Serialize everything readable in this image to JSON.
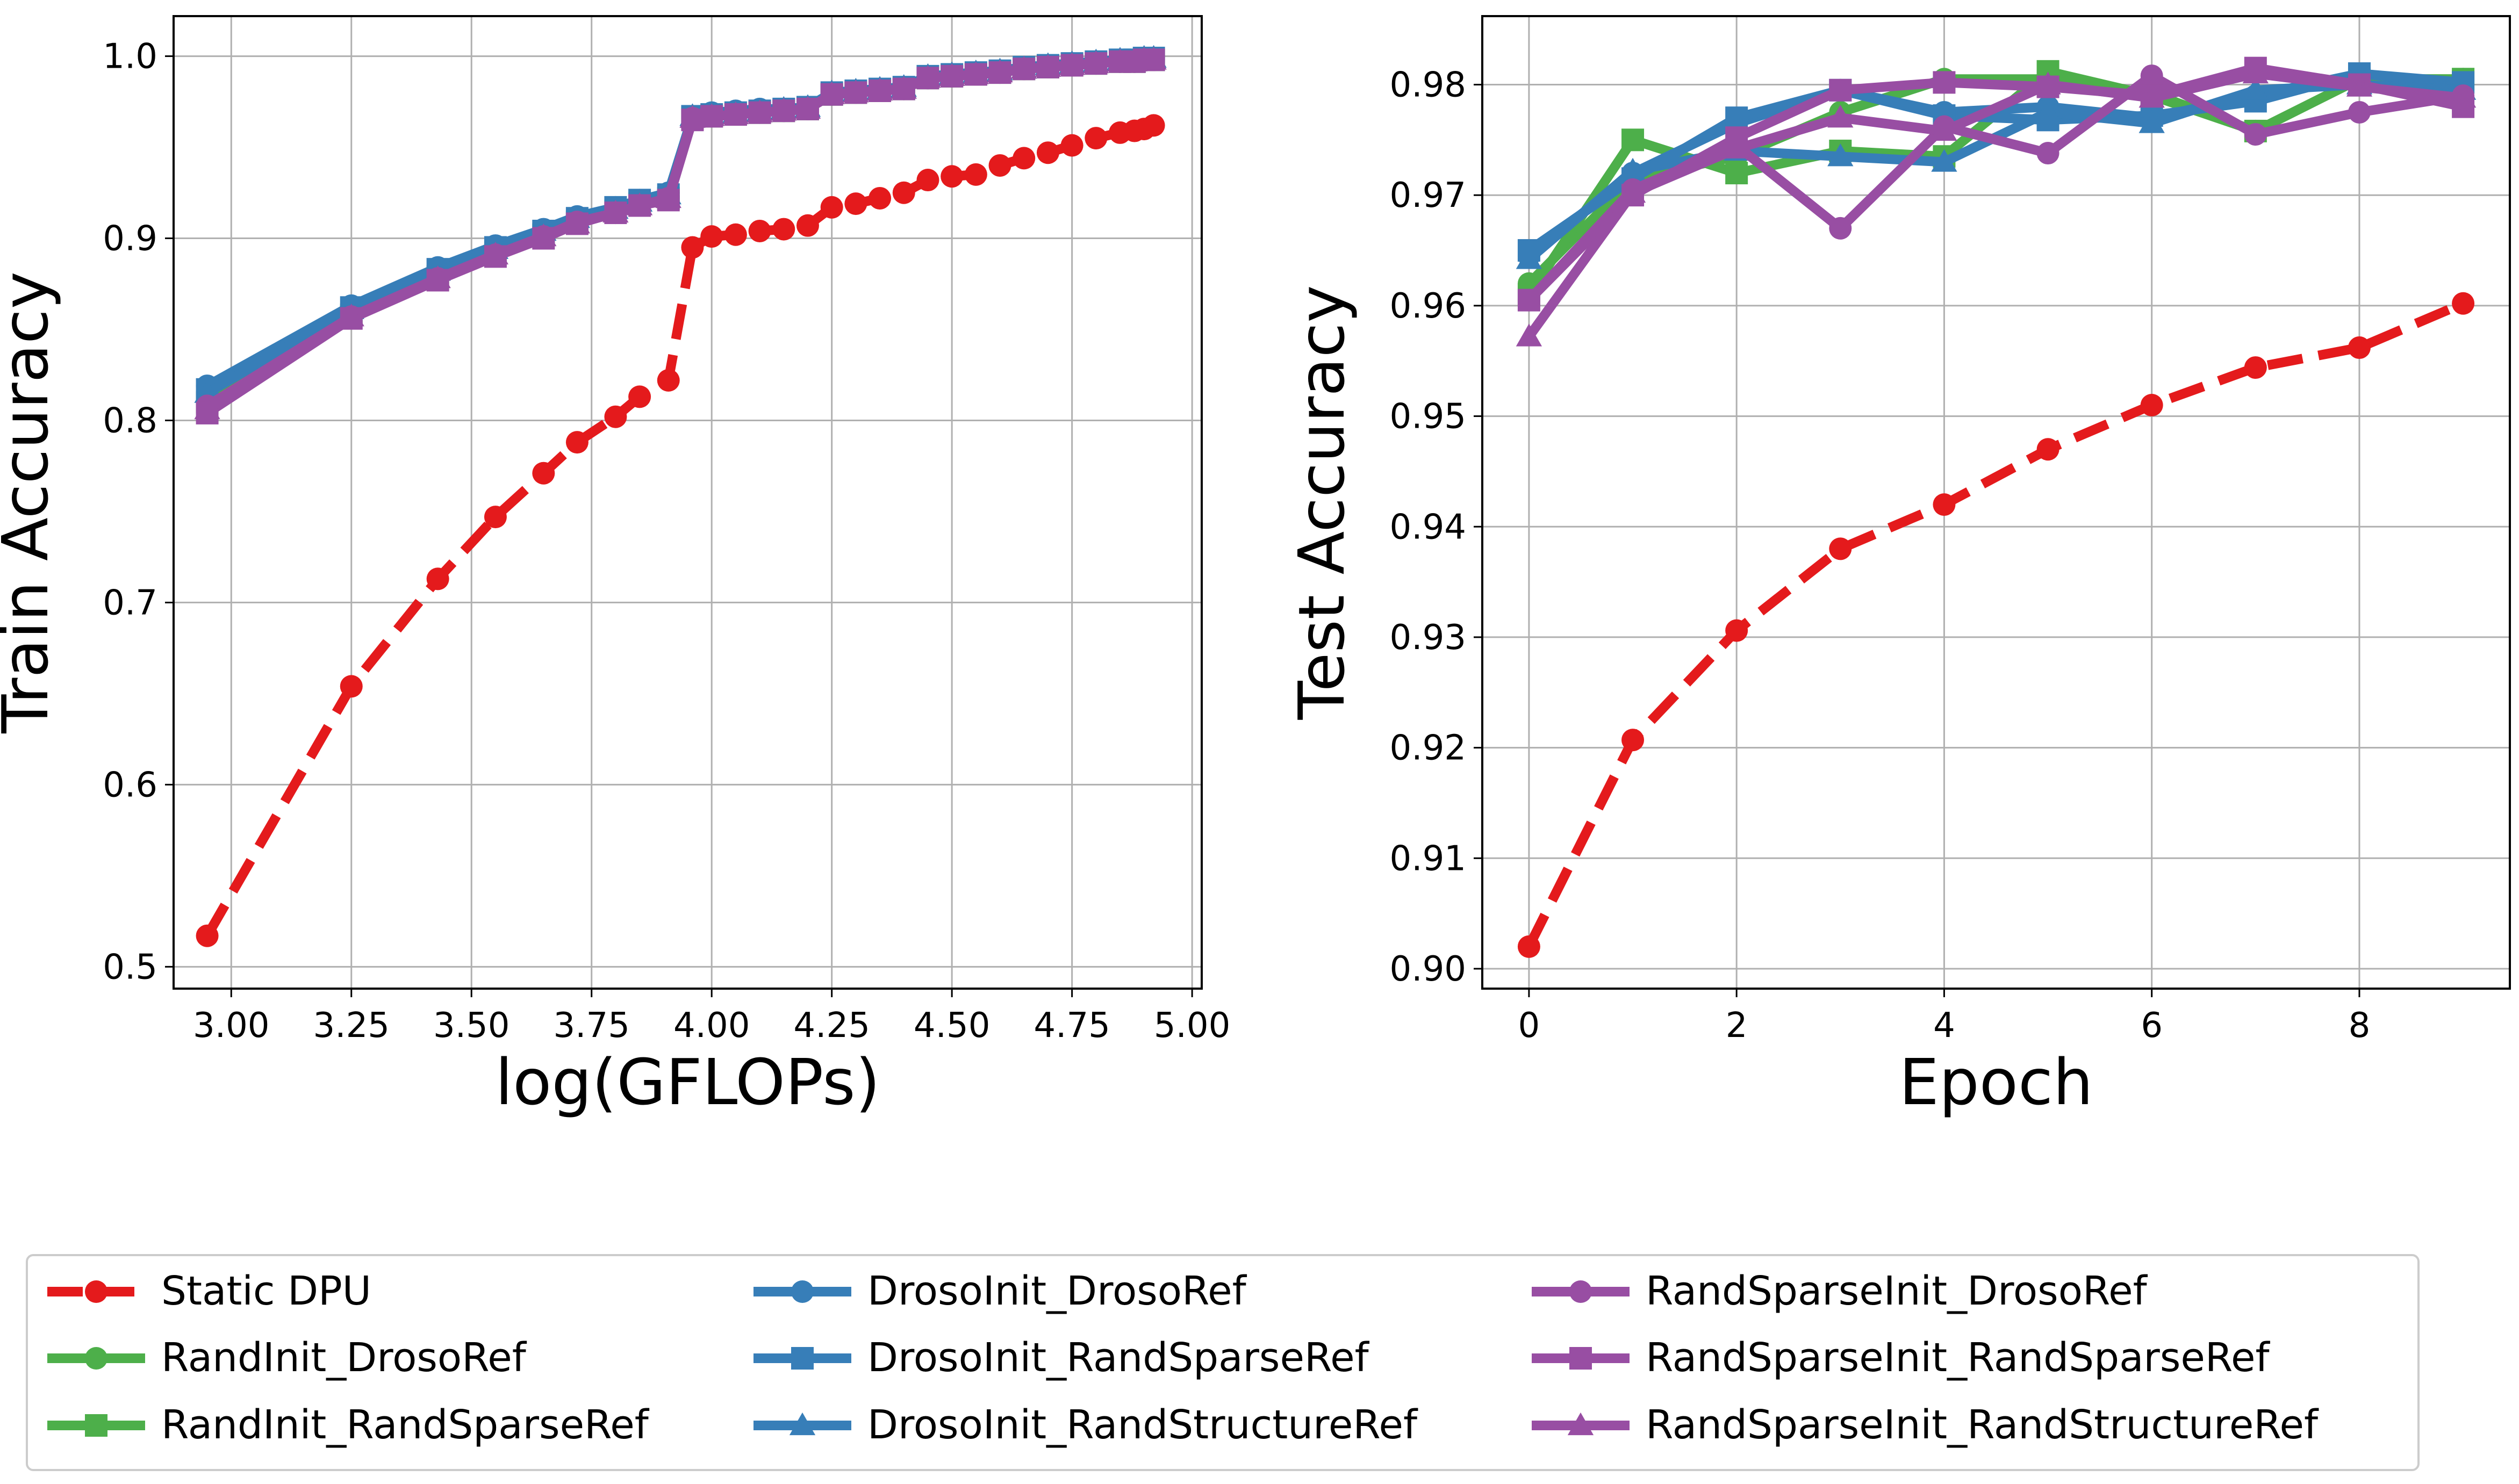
{
  "chart_data": [
    {
      "type": "line",
      "xlabel": "log(GFLOPs)",
      "ylabel": "Train Accuracy",
      "xlim": [
        2.88,
        5.02
      ],
      "ylim": [
        0.488,
        1.022
      ],
      "xticks": [
        3.0,
        3.25,
        3.5,
        3.75,
        4.0,
        4.25,
        4.5,
        4.75,
        5.0
      ],
      "xtick_labels": [
        "3.00",
        "3.25",
        "3.50",
        "3.75",
        "4.00",
        "4.25",
        "4.50",
        "4.75",
        "5.00"
      ],
      "yticks": [
        0.5,
        0.6,
        0.7,
        0.8,
        0.9,
        1.0
      ],
      "ytick_labels": [
        "0.5",
        "0.6",
        "0.7",
        "0.8",
        "0.9",
        "1.0"
      ],
      "grid": true,
      "series": [
        {
          "name": "Static DPU",
          "color": "#e41a1c",
          "dash": true,
          "marker": "circle",
          "x": [
            2.95,
            3.25,
            3.43,
            3.55,
            3.65,
            3.72,
            3.8,
            3.85,
            3.91,
            3.96,
            4.0,
            4.05,
            4.1,
            4.15,
            4.2,
            4.25,
            4.3,
            4.35,
            4.4,
            4.45,
            4.5,
            4.55,
            4.6,
            4.65,
            4.7,
            4.75,
            4.8,
            4.85,
            4.88,
            4.9,
            4.92
          ],
          "y": [
            0.517,
            0.654,
            0.713,
            0.747,
            0.771,
            0.788,
            0.802,
            0.813,
            0.822,
            0.895,
            0.901,
            0.902,
            0.904,
            0.905,
            0.907,
            0.917,
            0.919,
            0.922,
            0.925,
            0.932,
            0.934,
            0.935,
            0.94,
            0.944,
            0.947,
            0.951,
            0.955,
            0.958,
            0.959,
            0.96,
            0.962
          ]
        },
        {
          "name": "RandInit_DrosoRef",
          "color": "#4daf4a",
          "dash": false,
          "marker": "circle",
          "x": [
            2.95,
            3.25,
            3.43,
            3.55,
            3.65,
            3.72,
            3.8,
            3.85,
            3.91,
            3.96,
            4.0,
            4.05,
            4.1,
            4.15,
            4.2,
            4.25,
            4.3,
            4.35,
            4.4,
            4.45,
            4.5,
            4.55,
            4.6,
            4.65,
            4.7,
            4.75,
            4.8,
            4.85,
            4.88,
            4.9,
            4.92
          ],
          "y": [
            0.812,
            0.859,
            0.88,
            0.893,
            0.903,
            0.91,
            0.915,
            0.919,
            0.923,
            0.966,
            0.968,
            0.969,
            0.97,
            0.97,
            0.971,
            0.979,
            0.98,
            0.981,
            0.982,
            0.988,
            0.989,
            0.99,
            0.991,
            0.993,
            0.994,
            0.995,
            0.996,
            0.997,
            0.997,
            0.998,
            0.998
          ]
        },
        {
          "name": "RandInit_RandSparseRef",
          "color": "#4daf4a",
          "dash": false,
          "marker": "square",
          "x": [
            2.95,
            3.25,
            3.43,
            3.55,
            3.65,
            3.72,
            3.8,
            3.85,
            3.91,
            3.96,
            4.0,
            4.05,
            4.1,
            4.15,
            4.2,
            4.25,
            4.3,
            4.35,
            4.4,
            4.45,
            4.5,
            4.55,
            4.6,
            4.65,
            4.7,
            4.75,
            4.8,
            4.85,
            4.88,
            4.9,
            4.92
          ],
          "y": [
            0.81,
            0.858,
            0.879,
            0.892,
            0.902,
            0.909,
            0.915,
            0.919,
            0.922,
            0.966,
            0.967,
            0.968,
            0.969,
            0.97,
            0.971,
            0.979,
            0.98,
            0.981,
            0.982,
            0.988,
            0.989,
            0.99,
            0.991,
            0.993,
            0.994,
            0.995,
            0.996,
            0.997,
            0.997,
            0.998,
            0.998
          ]
        },
        {
          "name": "DrosoInit_DrosoRef",
          "color": "#377eb8",
          "dash": false,
          "marker": "circle",
          "x": [
            2.95,
            3.25,
            3.43,
            3.55,
            3.65,
            3.72,
            3.8,
            3.85,
            3.91,
            3.96,
            4.0,
            4.05,
            4.1,
            4.15,
            4.2,
            4.25,
            4.3,
            4.35,
            4.4,
            4.45,
            4.5,
            4.55,
            4.6,
            4.65,
            4.7,
            4.75,
            4.8,
            4.85,
            4.88,
            4.9,
            4.92
          ],
          "y": [
            0.819,
            0.863,
            0.884,
            0.896,
            0.905,
            0.912,
            0.917,
            0.921,
            0.925,
            0.967,
            0.969,
            0.97,
            0.971,
            0.971,
            0.972,
            0.98,
            0.981,
            0.982,
            0.983,
            0.989,
            0.99,
            0.991,
            0.992,
            0.994,
            0.995,
            0.996,
            0.997,
            0.998,
            0.998,
            0.999,
            0.999
          ]
        },
        {
          "name": "DrosoInit_RandSparseRef",
          "color": "#377eb8",
          "dash": false,
          "marker": "square",
          "x": [
            2.95,
            3.25,
            3.43,
            3.55,
            3.65,
            3.72,
            3.8,
            3.85,
            3.91,
            3.96,
            4.0,
            4.05,
            4.1,
            4.15,
            4.2,
            4.25,
            4.3,
            4.35,
            4.4,
            4.45,
            4.5,
            4.55,
            4.6,
            4.65,
            4.7,
            4.75,
            4.8,
            4.85,
            4.88,
            4.9,
            4.92
          ],
          "y": [
            0.817,
            0.862,
            0.883,
            0.895,
            0.904,
            0.911,
            0.917,
            0.921,
            0.924,
            0.967,
            0.968,
            0.969,
            0.97,
            0.971,
            0.972,
            0.98,
            0.981,
            0.982,
            0.983,
            0.989,
            0.99,
            0.991,
            0.992,
            0.994,
            0.995,
            0.996,
            0.997,
            0.998,
            0.998,
            0.999,
            0.999
          ]
        },
        {
          "name": "DrosoInit_RandStructureRef",
          "color": "#377eb8",
          "dash": false,
          "marker": "triangle",
          "x": [
            2.95,
            3.25,
            3.43,
            3.55,
            3.65,
            3.72,
            3.8,
            3.85,
            3.91,
            3.96,
            4.0,
            4.05,
            4.1,
            4.15,
            4.2,
            4.25,
            4.3,
            4.35,
            4.4,
            4.45,
            4.5,
            4.55,
            4.6,
            4.65,
            4.7,
            4.75,
            4.8,
            4.85,
            4.88,
            4.9,
            4.92
          ],
          "y": [
            0.815,
            0.861,
            0.882,
            0.894,
            0.904,
            0.911,
            0.916,
            0.92,
            0.924,
            0.967,
            0.968,
            0.969,
            0.97,
            0.971,
            0.972,
            0.98,
            0.981,
            0.982,
            0.983,
            0.989,
            0.99,
            0.991,
            0.992,
            0.993,
            0.995,
            0.996,
            0.997,
            0.998,
            0.998,
            0.999,
            0.999
          ]
        },
        {
          "name": "RandSparseInit_DrosoRef",
          "color": "#984ea3",
          "dash": false,
          "marker": "circle",
          "x": [
            2.95,
            3.25,
            3.43,
            3.55,
            3.65,
            3.72,
            3.8,
            3.85,
            3.91,
            3.96,
            4.0,
            4.05,
            4.1,
            4.15,
            4.2,
            4.25,
            4.3,
            4.35,
            4.4,
            4.45,
            4.5,
            4.55,
            4.6,
            4.65,
            4.7,
            4.75,
            4.8,
            4.85,
            4.88,
            4.9,
            4.92
          ],
          "y": [
            0.808,
            0.857,
            0.878,
            0.891,
            0.901,
            0.909,
            0.914,
            0.918,
            0.922,
            0.966,
            0.967,
            0.968,
            0.969,
            0.97,
            0.971,
            0.979,
            0.98,
            0.981,
            0.982,
            0.988,
            0.989,
            0.99,
            0.991,
            0.993,
            0.994,
            0.995,
            0.996,
            0.997,
            0.997,
            0.998,
            0.998
          ]
        },
        {
          "name": "RandSparseInit_RandSparseRef",
          "color": "#984ea3",
          "dash": false,
          "marker": "square",
          "x": [
            2.95,
            3.25,
            3.43,
            3.55,
            3.65,
            3.72,
            3.8,
            3.85,
            3.91,
            3.96,
            4.0,
            4.05,
            4.1,
            4.15,
            4.2,
            4.25,
            4.3,
            4.35,
            4.4,
            4.45,
            4.5,
            4.55,
            4.6,
            4.65,
            4.7,
            4.75,
            4.8,
            4.85,
            4.88,
            4.9,
            4.92
          ],
          "y": [
            0.804,
            0.856,
            0.877,
            0.89,
            0.9,
            0.908,
            0.914,
            0.918,
            0.921,
            0.965,
            0.967,
            0.968,
            0.969,
            0.97,
            0.971,
            0.979,
            0.98,
            0.981,
            0.982,
            0.988,
            0.989,
            0.99,
            0.991,
            0.993,
            0.994,
            0.995,
            0.996,
            0.997,
            0.997,
            0.998,
            0.998
          ]
        },
        {
          "name": "RandSparseInit_RandStructureRef",
          "color": "#984ea3",
          "dash": false,
          "marker": "triangle",
          "x": [
            2.95,
            3.25,
            3.43,
            3.55,
            3.65,
            3.72,
            3.8,
            3.85,
            3.91,
            3.96,
            4.0,
            4.05,
            4.1,
            4.15,
            4.2,
            4.25,
            4.3,
            4.35,
            4.4,
            4.45,
            4.5,
            4.55,
            4.6,
            4.65,
            4.7,
            4.75,
            4.8,
            4.85,
            4.88,
            4.9,
            4.92
          ],
          "y": [
            0.806,
            0.857,
            0.878,
            0.891,
            0.901,
            0.908,
            0.914,
            0.918,
            0.922,
            0.966,
            0.967,
            0.968,
            0.969,
            0.97,
            0.971,
            0.979,
            0.98,
            0.981,
            0.982,
            0.988,
            0.989,
            0.99,
            0.991,
            0.993,
            0.994,
            0.995,
            0.996,
            0.997,
            0.997,
            0.998,
            0.998
          ]
        }
      ]
    },
    {
      "type": "line",
      "xlabel": "Epoch",
      "ylabel": "Test Accuracy",
      "xlim": [
        -0.45,
        9.45
      ],
      "ylim": [
        0.8982,
        0.9862
      ],
      "xticks": [
        0,
        2,
        4,
        6,
        8
      ],
      "xtick_labels": [
        "0",
        "2",
        "4",
        "6",
        "8"
      ],
      "yticks": [
        0.9,
        0.91,
        0.92,
        0.93,
        0.94,
        0.95,
        0.96,
        0.97,
        0.98
      ],
      "ytick_labels": [
        "0.90",
        "0.91",
        "0.92",
        "0.93",
        "0.94",
        "0.95",
        "0.96",
        "0.97",
        "0.98"
      ],
      "grid": true,
      "series": [
        {
          "name": "Static DPU",
          "color": "#e41a1c",
          "dash": true,
          "marker": "circle",
          "x": [
            0,
            1,
            2,
            3,
            4,
            5,
            6,
            7,
            8,
            9
          ],
          "y": [
            0.902,
            0.9207,
            0.9306,
            0.938,
            0.942,
            0.947,
            0.951,
            0.9544,
            0.9562,
            0.9602
          ]
        },
        {
          "name": "RandInit_DrosoRef",
          "color": "#4daf4a",
          "dash": false,
          "marker": "circle",
          "x": [
            0,
            1,
            2,
            3,
            4,
            5,
            6,
            7,
            8,
            9
          ],
          "y": [
            0.962,
            0.9715,
            0.9735,
            0.9775,
            0.9805,
            0.9805,
            0.9792,
            0.9758,
            0.9805,
            0.9805
          ]
        },
        {
          "name": "RandInit_RandSparseRef",
          "color": "#4daf4a",
          "dash": false,
          "marker": "square",
          "x": [
            0,
            1,
            2,
            3,
            4,
            5,
            6,
            7,
            8,
            9
          ],
          "y": [
            0.961,
            0.975,
            0.972,
            0.974,
            0.9735,
            0.9812,
            0.979,
            0.9758,
            0.9805,
            0.9805
          ]
        },
        {
          "name": "DrosoInit_DrosoRef",
          "color": "#377eb8",
          "dash": false,
          "marker": "circle",
          "x": [
            0,
            1,
            2,
            3,
            4,
            5,
            6,
            7,
            8,
            9
          ],
          "y": [
            0.9645,
            0.972,
            0.9765,
            0.9795,
            0.9775,
            0.978,
            0.977,
            0.979,
            0.981,
            0.98
          ]
        },
        {
          "name": "DrosoInit_RandSparseRef",
          "color": "#377eb8",
          "dash": false,
          "marker": "square",
          "x": [
            0,
            1,
            2,
            3,
            4,
            5,
            6,
            7,
            8,
            9
          ],
          "y": [
            0.965,
            0.9715,
            0.977,
            0.9795,
            0.9772,
            0.9768,
            0.9772,
            0.9785,
            0.981,
            0.9802
          ]
        },
        {
          "name": "DrosoInit_RandStructureRef",
          "color": "#377eb8",
          "dash": false,
          "marker": "triangle",
          "x": [
            0,
            1,
            2,
            3,
            4,
            5,
            6,
            7,
            8,
            9
          ],
          "y": [
            0.9642,
            0.9722,
            0.974,
            0.9735,
            0.973,
            0.9775,
            0.9765,
            0.9795,
            0.98,
            0.9795
          ]
        },
        {
          "name": "RandSparseInit_DrosoRef",
          "color": "#984ea3",
          "dash": false,
          "marker": "circle",
          "x": [
            0,
            1,
            2,
            3,
            4,
            5,
            6,
            7,
            8,
            9
          ],
          "y": [
            0.9605,
            0.9705,
            0.9745,
            0.967,
            0.9762,
            0.9738,
            0.9808,
            0.9755,
            0.9775,
            0.979
          ]
        },
        {
          "name": "RandSparseInit_RandSparseRef",
          "color": "#984ea3",
          "dash": false,
          "marker": "square",
          "x": [
            0,
            1,
            2,
            3,
            4,
            5,
            6,
            7,
            8,
            9
          ],
          "y": [
            0.9605,
            0.97,
            0.9752,
            0.9795,
            0.9802,
            0.9798,
            0.979,
            0.9815,
            0.98,
            0.978
          ]
        },
        {
          "name": "RandSparseInit_RandStructureRef",
          "color": "#984ea3",
          "dash": false,
          "marker": "triangle",
          "x": [
            0,
            1,
            2,
            3,
            4,
            5,
            6,
            7,
            8,
            9
          ],
          "y": [
            0.9572,
            0.9702,
            0.9742,
            0.977,
            0.9758,
            0.98,
            0.9788,
            0.981,
            0.9798,
            0.9788
          ]
        }
      ]
    }
  ],
  "legend": {
    "placement": "bottom",
    "entries": [
      {
        "label": "Static DPU",
        "color": "#e41a1c",
        "dash": true,
        "marker": "circle"
      },
      {
        "label": "RandInit_DrosoRef",
        "color": "#4daf4a",
        "dash": false,
        "marker": "circle"
      },
      {
        "label": "RandInit_RandSparseRef",
        "color": "#4daf4a",
        "dash": false,
        "marker": "square"
      },
      {
        "label": "DrosoInit_DrosoRef",
        "color": "#377eb8",
        "dash": false,
        "marker": "circle"
      },
      {
        "label": "DrosoInit_RandSparseRef",
        "color": "#377eb8",
        "dash": false,
        "marker": "square"
      },
      {
        "label": "DrosoInit_RandStructureRef",
        "color": "#377eb8",
        "dash": false,
        "marker": "triangle"
      },
      {
        "label": "RandSparseInit_DrosoRef",
        "color": "#984ea3",
        "dash": false,
        "marker": "circle"
      },
      {
        "label": "RandSparseInit_RandSparseRef",
        "color": "#984ea3",
        "dash": false,
        "marker": "square"
      },
      {
        "label": "RandSparseInit_RandStructureRef",
        "color": "#984ea3",
        "dash": false,
        "marker": "triangle"
      }
    ]
  }
}
